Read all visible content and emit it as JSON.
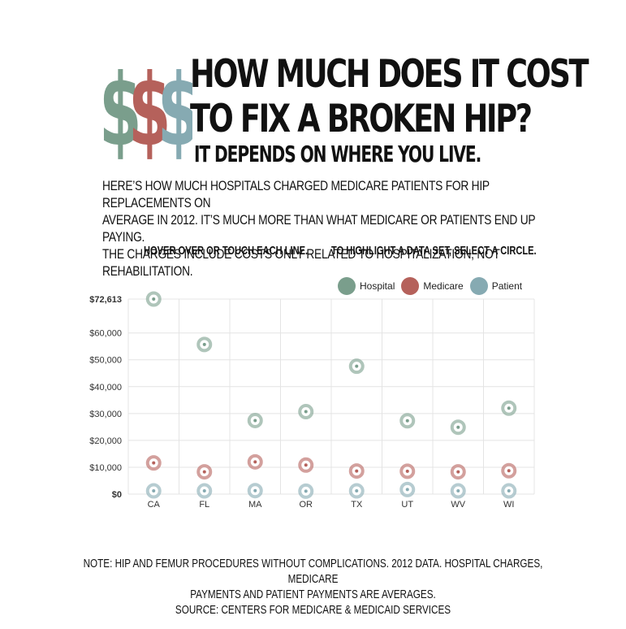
{
  "header": {
    "title_line1": "HOW MUCH DOES IT COST",
    "title_line2": "TO FIX A BROKEN HIP?",
    "subtitle": "IT DEPENDS ON WHERE YOU LIVE.",
    "intro_line1": "HERE’S HOW MUCH HOSPITALS CHARGED MEDICARE PATIENTS FOR HIP REPLACEMENTS ON",
    "intro_line2": "AVERAGE IN 2012. IT’S MUCH MORE THAN WHAT MEDICARE OR PATIENTS END UP PAYING.",
    "intro_line3": "THE CHARGES INCLUDE COSTS ONLY RELATED TO HOSPITALIZATION, NOT REHABILITATION.",
    "hint_left": "HOVER OVER OR TOUCH EACH LINE.",
    "hint_right": "TO HIGHLIGHT A DATA SET, SELECT A CIRCLE."
  },
  "colors": {
    "hospital": "#7a9e8c",
    "medicare": "#b5615b",
    "patient": "#86aab2",
    "grid": "#e4e4e4"
  },
  "chart_data": {
    "type": "scatter",
    "categories": [
      "CA",
      "FL",
      "MA",
      "OR",
      "TX",
      "UT",
      "WV",
      "WI"
    ],
    "y_tick_labels": [
      "$0",
      "$10,000",
      "$20,000",
      "$30,000",
      "$40,000",
      "$50,000",
      "$60,000",
      "$72,613"
    ],
    "y_ticks": [
      0,
      10000,
      20000,
      30000,
      40000,
      50000,
      60000,
      72613
    ],
    "ylim": [
      0,
      72613
    ],
    "legend_position": "top-right",
    "grid": true,
    "series": [
      {
        "name": "Hospital",
        "color": "#7a9e8c",
        "values": [
          72613,
          55700,
          27400,
          30700,
          47600,
          27300,
          24900,
          32000
        ]
      },
      {
        "name": "Medicare",
        "color": "#b5615b",
        "values": [
          11600,
          8300,
          12000,
          10800,
          8600,
          8500,
          8300,
          8700
        ]
      },
      {
        "name": "Patient",
        "color": "#86aab2",
        "values": [
          1200,
          1200,
          1300,
          1100,
          1200,
          1700,
          1200,
          1200
        ]
      }
    ]
  },
  "footer": {
    "note_line1": "NOTE: HIP AND FEMUR PROCEDURES WITHOUT COMPLICATIONS. 2012 DATA. HOSPITAL CHARGES, MEDICARE",
    "note_line2": "PAYMENTS AND PATIENT PAYMENTS ARE AVERAGES.",
    "note_line3": "SOURCE: CENTERS FOR MEDICARE & MEDICAID SERVICES"
  }
}
